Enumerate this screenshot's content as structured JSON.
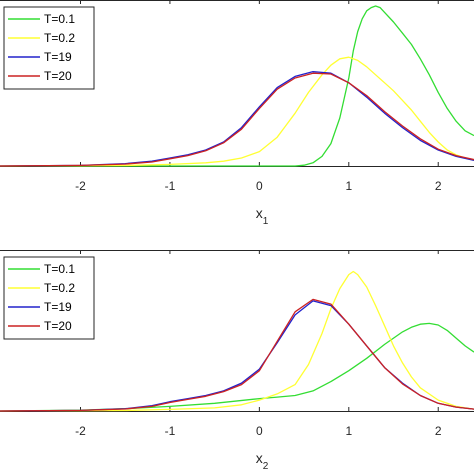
{
  "chart_data": [
    {
      "type": "line",
      "xlabel": "x",
      "xlabel_sub": "1",
      "xlim": [
        -2.9,
        2.4
      ],
      "ylim": [
        0,
        1.0
      ],
      "xticks": [
        "-2",
        "-1",
        "0",
        "1",
        "2"
      ],
      "xtick_values": [
        -2,
        -1,
        0,
        1,
        2
      ],
      "grid": false,
      "legend_position": "top-left",
      "series": [
        {
          "name": "T=0.1",
          "color": "#33dd33",
          "x": [
            -2.9,
            0.4,
            0.5,
            0.6,
            0.7,
            0.8,
            0.9,
            1.0,
            1.05,
            1.1,
            1.15,
            1.2,
            1.25,
            1.3,
            1.35,
            1.4,
            1.5,
            1.6,
            1.7,
            1.8,
            1.9,
            2.0,
            2.1,
            2.2,
            2.3,
            2.4
          ],
          "y": [
            0,
            0,
            0.005,
            0.02,
            0.06,
            0.14,
            0.3,
            0.55,
            0.72,
            0.84,
            0.92,
            0.97,
            0.99,
            1.0,
            0.99,
            0.96,
            0.9,
            0.83,
            0.76,
            0.67,
            0.57,
            0.46,
            0.36,
            0.28,
            0.22,
            0.19
          ]
        },
        {
          "name": "T=0.2",
          "color": "#ffff33",
          "x": [
            -2.9,
            -1.5,
            -1.0,
            -0.6,
            -0.4,
            -0.2,
            0.0,
            0.2,
            0.4,
            0.55,
            0.7,
            0.8,
            0.9,
            1.0,
            1.1,
            1.2,
            1.3,
            1.4,
            1.5,
            1.6,
            1.7,
            1.8,
            1.9,
            2.0,
            2.1,
            2.2,
            2.3,
            2.4
          ],
          "y": [
            0,
            0.003,
            0.01,
            0.02,
            0.03,
            0.05,
            0.09,
            0.18,
            0.33,
            0.46,
            0.57,
            0.63,
            0.67,
            0.68,
            0.66,
            0.62,
            0.57,
            0.52,
            0.47,
            0.41,
            0.35,
            0.28,
            0.21,
            0.15,
            0.1,
            0.07,
            0.05,
            0.035
          ]
        },
        {
          "name": "T=19",
          "color": "#2222cc",
          "x": [
            -2.9,
            -2.0,
            -1.5,
            -1.2,
            -1.0,
            -0.8,
            -0.6,
            -0.4,
            -0.2,
            0.0,
            0.2,
            0.4,
            0.6,
            0.8,
            1.0,
            1.2,
            1.4,
            1.6,
            1.8,
            2.0,
            2.2,
            2.4
          ],
          "y": [
            0,
            0.004,
            0.015,
            0.03,
            0.05,
            0.07,
            0.1,
            0.15,
            0.24,
            0.37,
            0.49,
            0.56,
            0.59,
            0.58,
            0.52,
            0.43,
            0.33,
            0.24,
            0.16,
            0.1,
            0.06,
            0.035
          ]
        },
        {
          "name": "T=20",
          "color": "#cc2222",
          "x": [
            -2.9,
            -2.0,
            -1.5,
            -1.2,
            -1.0,
            -0.8,
            -0.6,
            -0.4,
            -0.2,
            0.0,
            0.2,
            0.4,
            0.6,
            0.8,
            1.0,
            1.2,
            1.4,
            1.6,
            1.8,
            2.0,
            2.2,
            2.4
          ],
          "y": [
            0,
            0.004,
            0.012,
            0.025,
            0.045,
            0.065,
            0.095,
            0.145,
            0.23,
            0.36,
            0.48,
            0.55,
            0.58,
            0.575,
            0.52,
            0.44,
            0.34,
            0.25,
            0.17,
            0.105,
            0.065,
            0.04
          ]
        }
      ],
      "legend": [
        "T=0.1",
        "T=0.2",
        "T=19",
        "T=20"
      ]
    },
    {
      "type": "line",
      "xlabel": "x",
      "xlabel_sub": "2",
      "xlim": [
        -2.9,
        2.4
      ],
      "ylim": [
        0,
        1.0
      ],
      "xticks": [
        "-2",
        "-1",
        "0",
        "1",
        "2"
      ],
      "xtick_values": [
        -2,
        -1,
        0,
        1,
        2
      ],
      "grid": false,
      "legend_position": "top-left",
      "series": [
        {
          "name": "T=0.1",
          "color": "#33dd33",
          "x": [
            -2.9,
            -2.0,
            -1.5,
            -1.0,
            -0.5,
            0.0,
            0.2,
            0.4,
            0.6,
            0.8,
            1.0,
            1.2,
            1.4,
            1.6,
            1.7,
            1.8,
            1.9,
            2.0,
            2.1,
            2.2,
            2.3,
            2.4
          ],
          "y": [
            0,
            0.005,
            0.015,
            0.03,
            0.05,
            0.08,
            0.09,
            0.1,
            0.13,
            0.19,
            0.26,
            0.34,
            0.43,
            0.51,
            0.54,
            0.56,
            0.565,
            0.555,
            0.52,
            0.47,
            0.42,
            0.38
          ]
        },
        {
          "name": "T=0.2",
          "color": "#ffff33",
          "x": [
            -2.9,
            -1.5,
            -1.0,
            -0.5,
            -0.2,
            0.0,
            0.2,
            0.4,
            0.55,
            0.7,
            0.8,
            0.9,
            1.0,
            1.05,
            1.1,
            1.2,
            1.3,
            1.4,
            1.5,
            1.6,
            1.7,
            1.8,
            2.0,
            2.2,
            2.4
          ],
          "y": [
            0,
            0.003,
            0.01,
            0.02,
            0.04,
            0.07,
            0.11,
            0.17,
            0.3,
            0.5,
            0.66,
            0.79,
            0.88,
            0.9,
            0.88,
            0.8,
            0.68,
            0.55,
            0.42,
            0.31,
            0.22,
            0.15,
            0.07,
            0.03,
            0.012
          ]
        },
        {
          "name": "T=19",
          "color": "#2222cc",
          "x": [
            -2.9,
            -2.0,
            -1.5,
            -1.2,
            -1.0,
            -0.8,
            -0.6,
            -0.4,
            -0.2,
            0.0,
            0.2,
            0.4,
            0.6,
            0.8,
            1.0,
            1.2,
            1.4,
            1.6,
            1.8,
            2.0,
            2.2,
            2.4
          ],
          "y": [
            0,
            0.004,
            0.015,
            0.035,
            0.06,
            0.08,
            0.1,
            0.13,
            0.18,
            0.27,
            0.44,
            0.62,
            0.71,
            0.68,
            0.56,
            0.42,
            0.28,
            0.18,
            0.1,
            0.05,
            0.025,
            0.012
          ]
        },
        {
          "name": "T=20",
          "color": "#cc2222",
          "x": [
            -2.9,
            -2.0,
            -1.5,
            -1.2,
            -1.0,
            -0.8,
            -0.6,
            -0.4,
            -0.2,
            0.0,
            0.2,
            0.4,
            0.6,
            0.8,
            1.0,
            1.2,
            1.4,
            1.6,
            1.8,
            2.0,
            2.2,
            2.4
          ],
          "y": [
            0,
            0.004,
            0.013,
            0.03,
            0.055,
            0.075,
            0.095,
            0.125,
            0.17,
            0.26,
            0.45,
            0.64,
            0.72,
            0.69,
            0.56,
            0.42,
            0.28,
            0.175,
            0.1,
            0.05,
            0.025,
            0.012
          ]
        }
      ],
      "legend": [
        "T=0.1",
        "T=0.2",
        "T=19",
        "T=20"
      ]
    }
  ]
}
